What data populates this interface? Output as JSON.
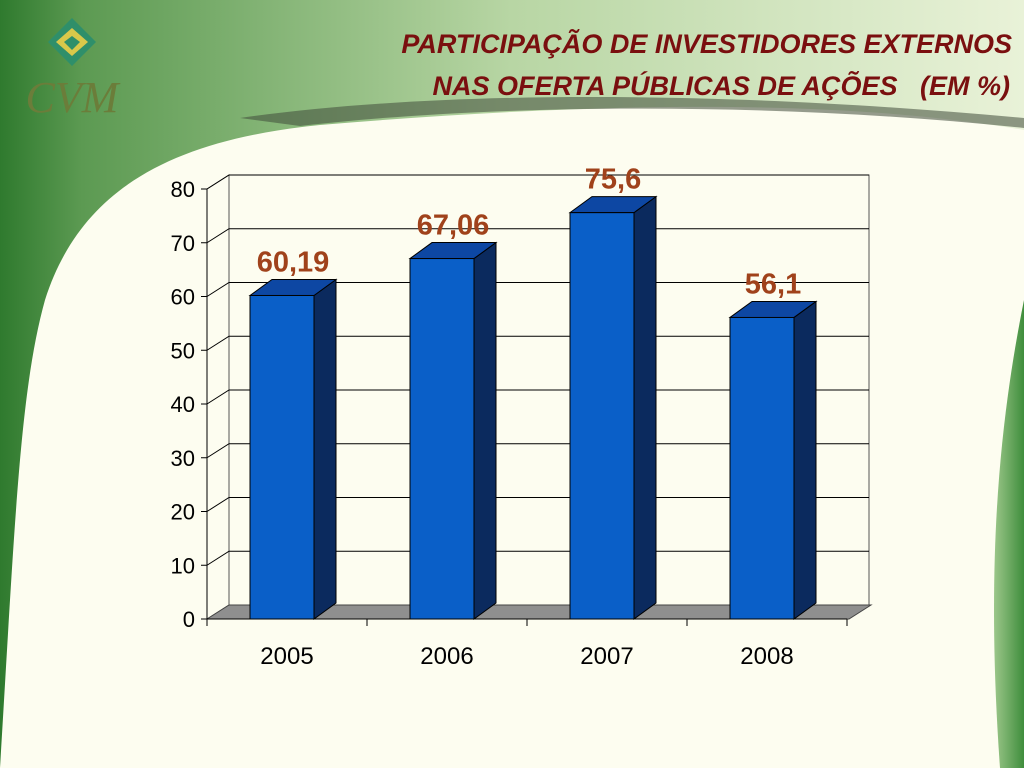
{
  "header": {
    "logo_text": "CVM",
    "title_line1": "PARTICIPAÇÃO DE INVESTIDORES EXTERNOS",
    "title_line2": "NAS OFERTA PÚBLICAS DE AÇÕES   (EM %)"
  },
  "colors": {
    "bar_front": "#0a5fc8",
    "bar_side": "#0b2a5e",
    "bar_top": "#0d47a3",
    "data_label": "#a0421b",
    "title": "#7a0f0f",
    "frame_green": "#3d8a3a"
  },
  "chart_data": {
    "type": "bar",
    "categories": [
      "2005",
      "2006",
      "2007",
      "2008"
    ],
    "values": [
      60.19,
      67.06,
      75.6,
      56.1
    ],
    "data_labels": [
      "60,19",
      "67,06",
      "75,6",
      "56,1"
    ],
    "ylim": [
      0,
      80
    ],
    "yticks": [
      "0",
      "10",
      "20",
      "30",
      "40",
      "50",
      "60",
      "70",
      "80"
    ],
    "grid": true,
    "legend": "none",
    "title": "",
    "xlabel": "",
    "ylabel": ""
  }
}
